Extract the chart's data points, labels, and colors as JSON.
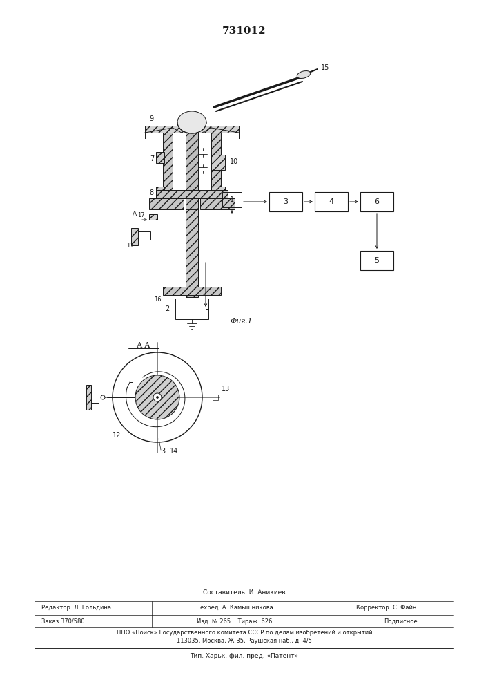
{
  "title": "731012",
  "fig1_label": "Фиг.1",
  "fig2_label": "А-А",
  "compositor": "Составитель  И. Аникиев",
  "editor": "Редактор  Л. Гольдина",
  "techred": "Техред  А. Камышникова",
  "corrector": "Корректор  С. Файн",
  "order": "Заказ 370/580",
  "edition": "Изд. № 265    Тираж  626",
  "subscribed": "Подписное",
  "npo": "НПО «Поиск» Государственного комитета СССР по делам изобретений и открытий",
  "address": "113035, Москва, Ж-35, Раушская наб., д. 4/5",
  "printer": "Тип. Харьк. фил. пред. «Патент»",
  "bg_color": "#ffffff",
  "line_color": "#1a1a1a"
}
